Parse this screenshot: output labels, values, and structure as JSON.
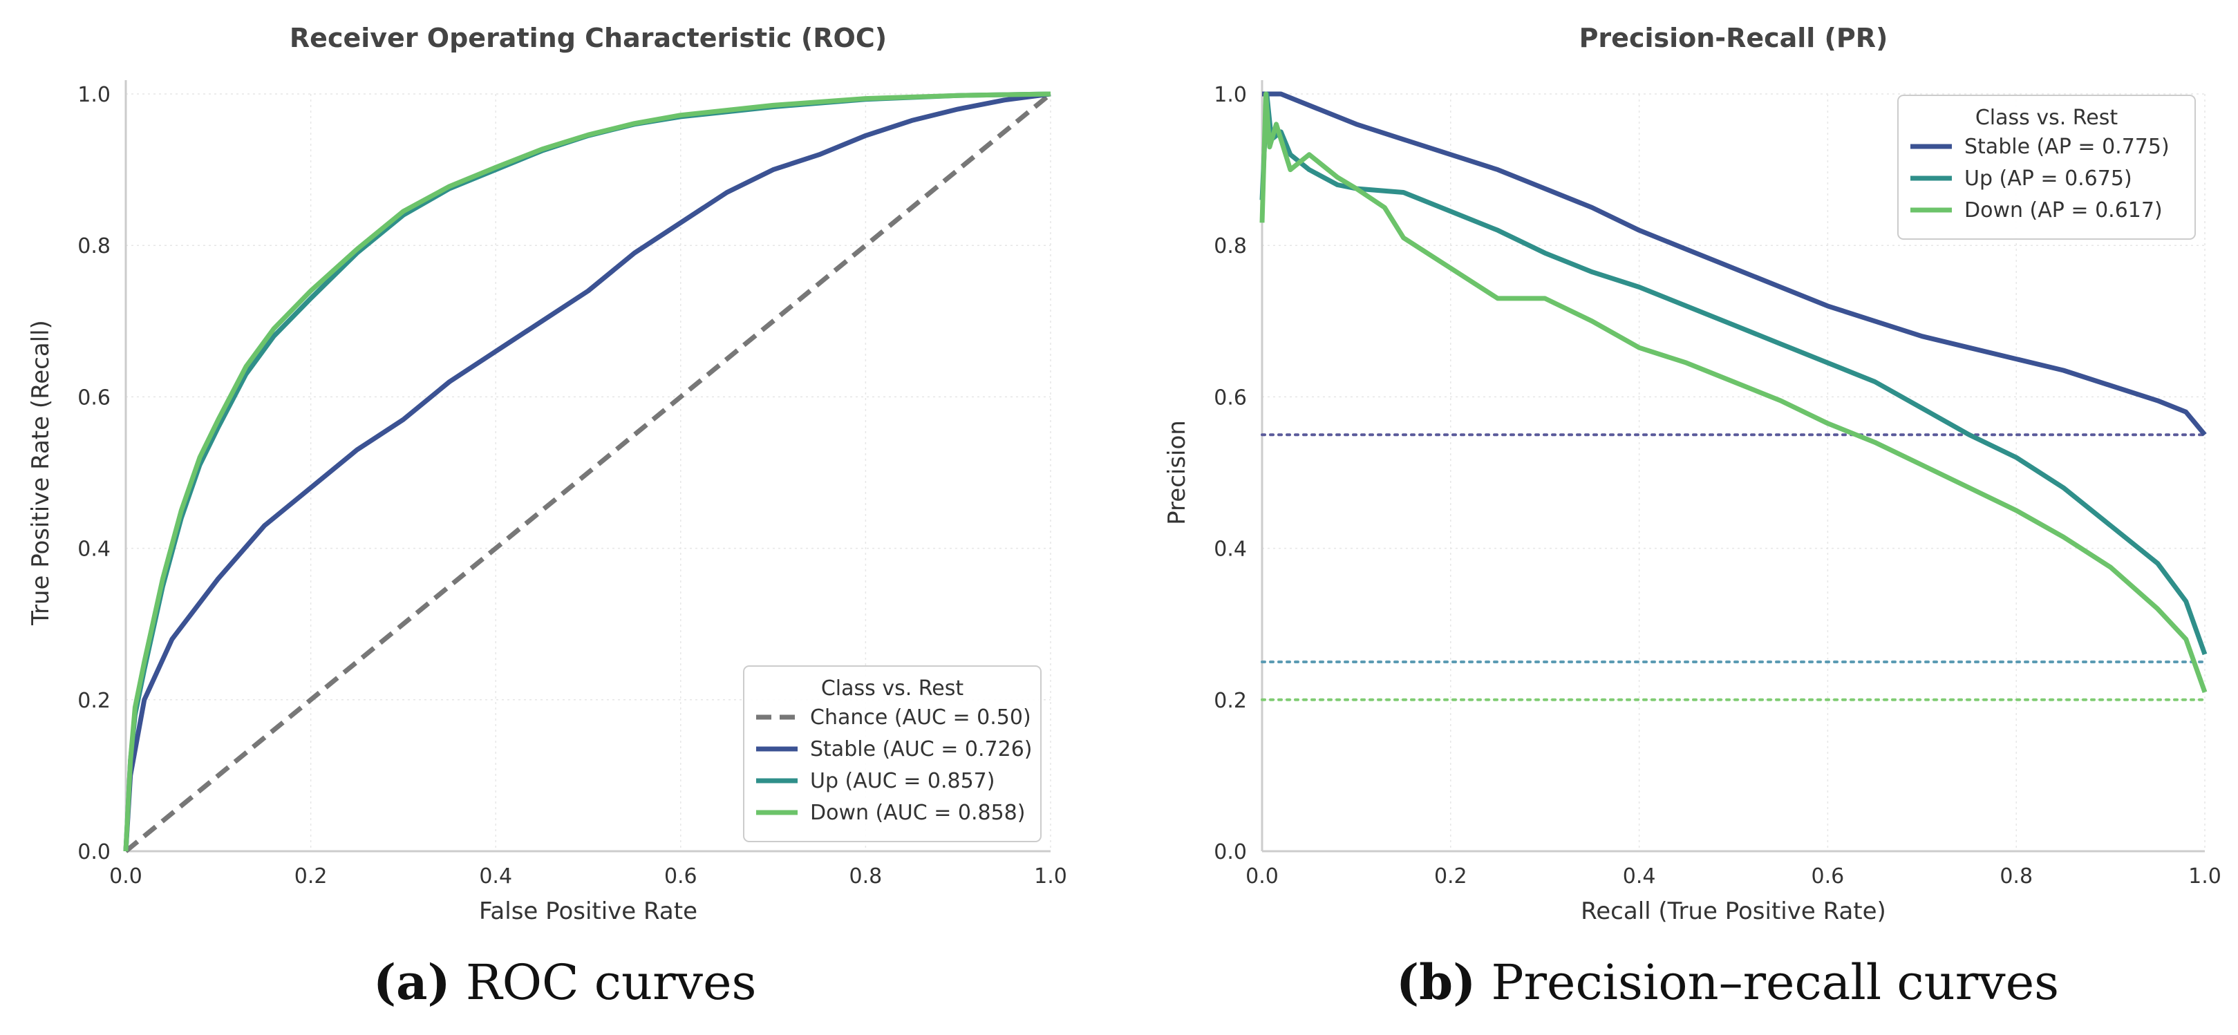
{
  "chart_data": [
    {
      "type": "line",
      "title": "Receiver Operating Characteristic (ROC)",
      "xlabel": "False Positive Rate",
      "ylabel": "True Positive Rate (Recall)",
      "xlim": [
        0,
        1
      ],
      "ylim": [
        0,
        1
      ],
      "xticks": [
        "0.0",
        "0.2",
        "0.4",
        "0.6",
        "0.8",
        "1.0"
      ],
      "yticks": [
        "0.0",
        "0.2",
        "0.4",
        "0.6",
        "0.8",
        "1.0"
      ],
      "grid": true,
      "legend_title": "Class vs. Rest",
      "legend_position": "lower-right",
      "series": [
        {
          "name": "Chance (AUC = 0.50)",
          "color": "#777777",
          "dash": "dashed",
          "points": [
            [
              0,
              0
            ],
            [
              1,
              1
            ]
          ]
        },
        {
          "name": "Stable (AUC = 0.726)",
          "color": "#3b5293",
          "dash": "solid",
          "points": [
            [
              0,
              0
            ],
            [
              0.005,
              0.1
            ],
            [
              0.02,
              0.2
            ],
            [
              0.05,
              0.28
            ],
            [
              0.1,
              0.36
            ],
            [
              0.15,
              0.43
            ],
            [
              0.2,
              0.48
            ],
            [
              0.25,
              0.53
            ],
            [
              0.3,
              0.57
            ],
            [
              0.35,
              0.62
            ],
            [
              0.4,
              0.66
            ],
            [
              0.45,
              0.7
            ],
            [
              0.5,
              0.74
            ],
            [
              0.55,
              0.79
            ],
            [
              0.6,
              0.83
            ],
            [
              0.65,
              0.87
            ],
            [
              0.7,
              0.9
            ],
            [
              0.75,
              0.92
            ],
            [
              0.8,
              0.945
            ],
            [
              0.85,
              0.965
            ],
            [
              0.9,
              0.98
            ],
            [
              0.95,
              0.992
            ],
            [
              1,
              1
            ]
          ]
        },
        {
          "name": "Up (AUC = 0.857)",
          "color": "#2f8f8a",
          "dash": "solid",
          "points": [
            [
              0,
              0
            ],
            [
              0.005,
              0.12
            ],
            [
              0.01,
              0.18
            ],
            [
              0.02,
              0.24
            ],
            [
              0.04,
              0.35
            ],
            [
              0.06,
              0.44
            ],
            [
              0.08,
              0.51
            ],
            [
              0.1,
              0.56
            ],
            [
              0.13,
              0.63
            ],
            [
              0.16,
              0.68
            ],
            [
              0.2,
              0.73
            ],
            [
              0.25,
              0.79
            ],
            [
              0.3,
              0.84
            ],
            [
              0.35,
              0.875
            ],
            [
              0.4,
              0.9
            ],
            [
              0.45,
              0.925
            ],
            [
              0.5,
              0.945
            ],
            [
              0.55,
              0.96
            ],
            [
              0.6,
              0.97
            ],
            [
              0.7,
              0.983
            ],
            [
              0.8,
              0.993
            ],
            [
              0.9,
              0.998
            ],
            [
              1,
              1
            ]
          ]
        },
        {
          "name": "Down (AUC = 0.858)",
          "color": "#6cc36a",
          "dash": "solid",
          "points": [
            [
              0,
              0
            ],
            [
              0.005,
              0.12
            ],
            [
              0.01,
              0.19
            ],
            [
              0.02,
              0.25
            ],
            [
              0.04,
              0.36
            ],
            [
              0.06,
              0.45
            ],
            [
              0.08,
              0.52
            ],
            [
              0.1,
              0.57
            ],
            [
              0.13,
              0.64
            ],
            [
              0.16,
              0.69
            ],
            [
              0.2,
              0.74
            ],
            [
              0.25,
              0.795
            ],
            [
              0.3,
              0.845
            ],
            [
              0.35,
              0.878
            ],
            [
              0.4,
              0.903
            ],
            [
              0.45,
              0.927
            ],
            [
              0.5,
              0.946
            ],
            [
              0.55,
              0.961
            ],
            [
              0.6,
              0.972
            ],
            [
              0.7,
              0.985
            ],
            [
              0.8,
              0.994
            ],
            [
              0.9,
              0.998
            ],
            [
              1,
              1
            ]
          ]
        }
      ]
    },
    {
      "type": "line",
      "title": "Precision-Recall (PR)",
      "xlabel": "Recall (True Positive Rate)",
      "ylabel": "Precision",
      "xlim": [
        0,
        1
      ],
      "ylim": [
        0,
        1
      ],
      "xticks": [
        "0.0",
        "0.2",
        "0.4",
        "0.6",
        "0.8",
        "1.0"
      ],
      "yticks": [
        "0.0",
        "0.2",
        "0.4",
        "0.6",
        "0.8",
        "1.0"
      ],
      "grid": true,
      "legend_title": "Class vs. Rest",
      "legend_position": "upper-right",
      "series": [
        {
          "name": "Stable (AP = 0.775)",
          "color": "#3b5293",
          "dash": "solid",
          "points": [
            [
              0,
              1.0
            ],
            [
              0.01,
              1.0
            ],
            [
              0.02,
              1.0
            ],
            [
              0.04,
              0.99
            ],
            [
              0.06,
              0.98
            ],
            [
              0.1,
              0.96
            ],
            [
              0.15,
              0.94
            ],
            [
              0.2,
              0.92
            ],
            [
              0.25,
              0.9
            ],
            [
              0.3,
              0.875
            ],
            [
              0.35,
              0.85
            ],
            [
              0.4,
              0.82
            ],
            [
              0.45,
              0.795
            ],
            [
              0.5,
              0.77
            ],
            [
              0.55,
              0.745
            ],
            [
              0.6,
              0.72
            ],
            [
              0.65,
              0.7
            ],
            [
              0.7,
              0.68
            ],
            [
              0.75,
              0.665
            ],
            [
              0.8,
              0.65
            ],
            [
              0.85,
              0.635
            ],
            [
              0.9,
              0.615
            ],
            [
              0.95,
              0.595
            ],
            [
              0.98,
              0.58
            ],
            [
              1,
              0.55
            ]
          ]
        },
        {
          "name": "Up (AP = 0.675)",
          "color": "#2f8f8a",
          "dash": "solid",
          "points": [
            [
              0,
              0.86
            ],
            [
              0.005,
              1.0
            ],
            [
              0.01,
              0.94
            ],
            [
              0.02,
              0.95
            ],
            [
              0.03,
              0.92
            ],
            [
              0.05,
              0.9
            ],
            [
              0.08,
              0.88
            ],
            [
              0.1,
              0.875
            ],
            [
              0.15,
              0.87
            ],
            [
              0.2,
              0.845
            ],
            [
              0.25,
              0.82
            ],
            [
              0.3,
              0.79
            ],
            [
              0.35,
              0.765
            ],
            [
              0.4,
              0.745
            ],
            [
              0.45,
              0.72
            ],
            [
              0.5,
              0.695
            ],
            [
              0.55,
              0.67
            ],
            [
              0.6,
              0.645
            ],
            [
              0.65,
              0.62
            ],
            [
              0.7,
              0.585
            ],
            [
              0.75,
              0.55
            ],
            [
              0.8,
              0.52
            ],
            [
              0.85,
              0.48
            ],
            [
              0.9,
              0.43
            ],
            [
              0.95,
              0.38
            ],
            [
              0.98,
              0.33
            ],
            [
              1,
              0.26
            ]
          ]
        },
        {
          "name": "Down (AP = 0.617)",
          "color": "#6cc36a",
          "dash": "solid",
          "points": [
            [
              0,
              0.83
            ],
            [
              0.004,
              1.0
            ],
            [
              0.008,
              0.93
            ],
            [
              0.015,
              0.96
            ],
            [
              0.03,
              0.9
            ],
            [
              0.05,
              0.92
            ],
            [
              0.08,
              0.89
            ],
            [
              0.1,
              0.875
            ],
            [
              0.13,
              0.85
            ],
            [
              0.15,
              0.81
            ],
            [
              0.2,
              0.77
            ],
            [
              0.25,
              0.73
            ],
            [
              0.3,
              0.73
            ],
            [
              0.35,
              0.7
            ],
            [
              0.4,
              0.665
            ],
            [
              0.45,
              0.645
            ],
            [
              0.5,
              0.62
            ],
            [
              0.55,
              0.595
            ],
            [
              0.6,
              0.565
            ],
            [
              0.65,
              0.54
            ],
            [
              0.7,
              0.51
            ],
            [
              0.75,
              0.48
            ],
            [
              0.8,
              0.45
            ],
            [
              0.85,
              0.415
            ],
            [
              0.9,
              0.375
            ],
            [
              0.95,
              0.32
            ],
            [
              0.98,
              0.28
            ],
            [
              1,
              0.21
            ]
          ]
        },
        {
          "name": "",
          "color": "#5a5a9a",
          "dash": "dotted",
          "baseline": true,
          "points": [
            [
              0,
              0.55
            ],
            [
              1,
              0.55
            ]
          ]
        },
        {
          "name": "",
          "color": "#5b9bb3",
          "dash": "dotted",
          "baseline": true,
          "points": [
            [
              0,
              0.25
            ],
            [
              1,
              0.25
            ]
          ]
        },
        {
          "name": "",
          "color": "#7fcc72",
          "dash": "dotted",
          "baseline": true,
          "points": [
            [
              0,
              0.2
            ],
            [
              1,
              0.2
            ]
          ]
        }
      ]
    }
  ],
  "captions": [
    {
      "tag": "(a)",
      "text": "ROC curves"
    },
    {
      "tag": "(b)",
      "text": "Precision–recall curves"
    }
  ]
}
